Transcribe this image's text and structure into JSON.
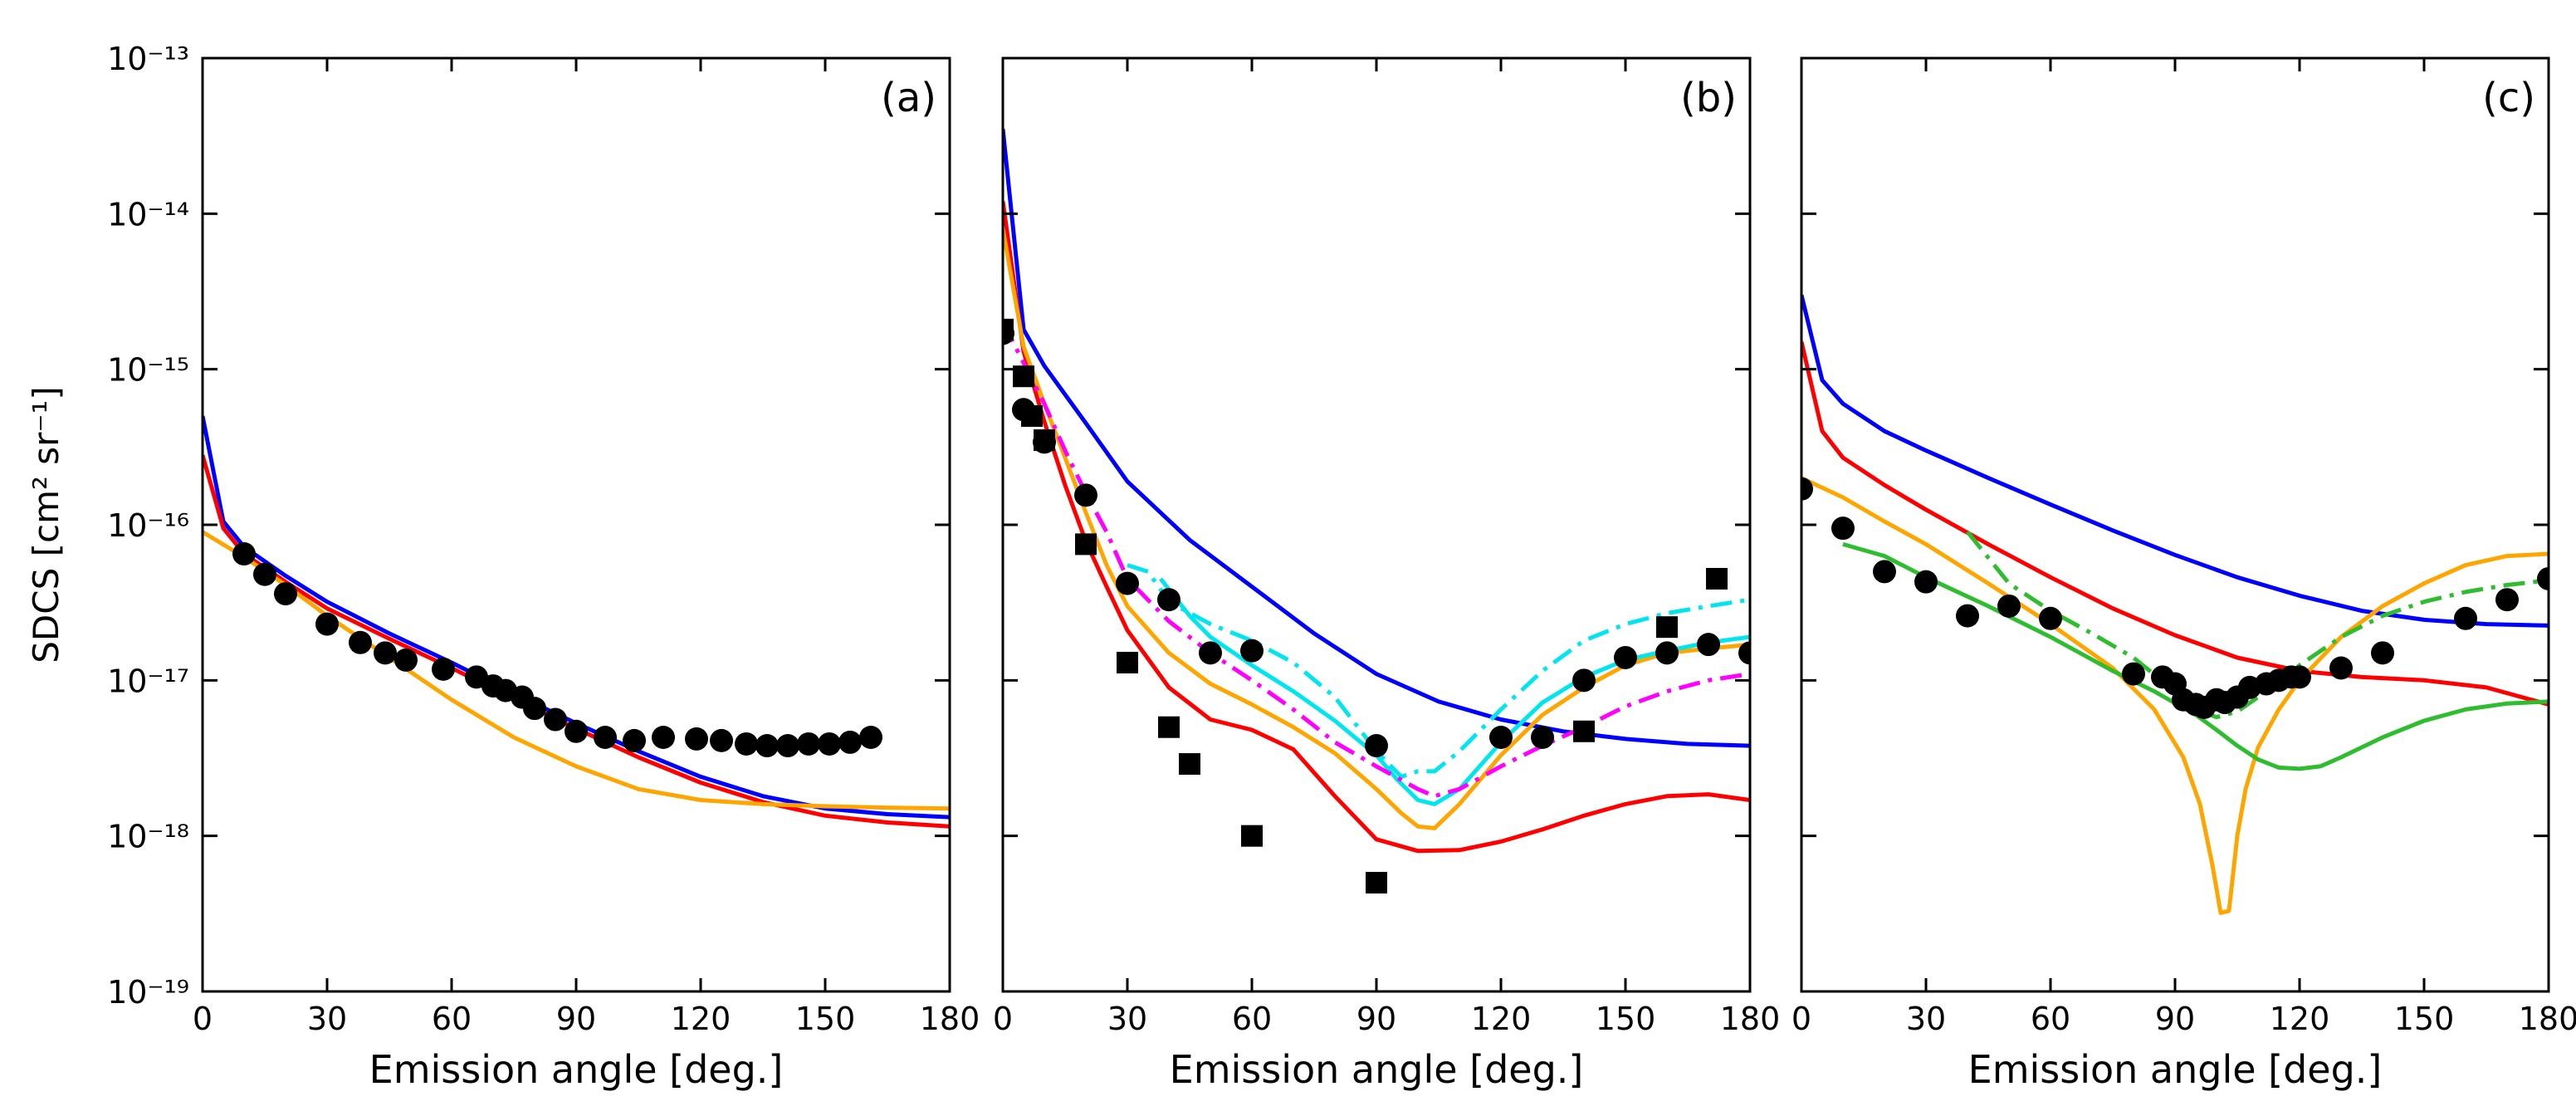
{
  "figure": {
    "ylabel": "SDCS [cm² sr⁻¹]"
  },
  "chart_data": [
    {
      "type": "line",
      "panel_label": "(a)",
      "title": "",
      "xlabel": "Emission angle [deg.]",
      "ylabel": "SDCS [cm² sr⁻¹]",
      "xlim": [
        0,
        180
      ],
      "ylim": [
        1e-19,
        1e-13
      ],
      "yscale": "log",
      "xticks": [
        0,
        30,
        60,
        90,
        120,
        150,
        180
      ],
      "yticks": [
        1e-19,
        1e-18,
        1e-17,
        1e-16,
        1e-15,
        1e-14,
        1e-13
      ],
      "ytick_labels": [
        "10⁻¹⁹",
        "10⁻¹⁸",
        "10⁻¹⁷",
        "10⁻¹⁶",
        "10⁻¹⁵",
        "10⁻¹⁴",
        "10⁻¹³"
      ],
      "show_yticklabels": true,
      "series": [
        {
          "name": "blue",
          "kind": "line",
          "color": "#0000ff",
          "dash": "solid",
          "x": [
            0,
            5,
            10,
            20,
            30,
            45,
            60,
            75,
            90,
            105,
            120,
            135,
            150,
            165,
            180
          ],
          "y": [
            5e-16,
            1.05e-16,
            7.2e-17,
            4.7e-17,
            3.2e-17,
            2e-17,
            1.3e-17,
            8.2e-18,
            5.3e-18,
            3.5e-18,
            2.4e-18,
            1.8e-18,
            1.5e-18,
            1.38e-18,
            1.32e-18
          ]
        },
        {
          "name": "red",
          "kind": "line",
          "color": "#ff0000",
          "dash": "solid",
          "x": [
            0,
            5,
            10,
            20,
            30,
            45,
            60,
            75,
            90,
            105,
            120,
            135,
            150,
            165,
            180
          ],
          "y": [
            2.8e-16,
            9.5e-17,
            6.5e-17,
            4.3e-17,
            2.9e-17,
            1.85e-17,
            1.2e-17,
            7.6e-18,
            4.9e-18,
            3.2e-18,
            2.2e-18,
            1.65e-18,
            1.35e-18,
            1.22e-18,
            1.15e-18
          ]
        },
        {
          "name": "orange",
          "kind": "line",
          "color": "#ffa500",
          "dash": "solid",
          "x": [
            0,
            10,
            20,
            30,
            45,
            60,
            75,
            90,
            105,
            120,
            135,
            150,
            165,
            180
          ],
          "y": [
            9e-17,
            6.2e-17,
            4.1e-17,
            2.6e-17,
            1.4e-17,
            7.5e-18,
            4.3e-18,
            2.8e-18,
            2e-18,
            1.7e-18,
            1.6e-18,
            1.55e-18,
            1.52e-18,
            1.5e-18
          ]
        },
        {
          "name": "measured",
          "kind": "scatter",
          "marker": "circle",
          "color": "#000000",
          "x": [
            10,
            15,
            20,
            30,
            38,
            44,
            49,
            58,
            66,
            70,
            73,
            77,
            80,
            85,
            90,
            97,
            104,
            111,
            119,
            125,
            131,
            136,
            141,
            146,
            151,
            156,
            161
          ],
          "y": [
            6.5e-17,
            4.8e-17,
            3.6e-17,
            2.3e-17,
            1.75e-17,
            1.5e-17,
            1.35e-17,
            1.18e-17,
            1.05e-17,
            9.2e-18,
            8.6e-18,
            7.8e-18,
            6.6e-18,
            5.6e-18,
            4.7e-18,
            4.3e-18,
            4.1e-18,
            4.3e-18,
            4.2e-18,
            4.1e-18,
            3.9e-18,
            3.8e-18,
            3.8e-18,
            3.9e-18,
            3.9e-18,
            4e-18,
            4.3e-18
          ]
        }
      ]
    },
    {
      "type": "line",
      "panel_label": "(b)",
      "title": "",
      "xlabel": "Emission angle [deg.]",
      "ylabel": "",
      "xlim": [
        0,
        180
      ],
      "ylim": [
        1e-19,
        1e-13
      ],
      "yscale": "log",
      "xticks": [
        0,
        30,
        60,
        90,
        120,
        150,
        180
      ],
      "yticks": [
        1e-19,
        1e-18,
        1e-17,
        1e-16,
        1e-15,
        1e-14,
        1e-13
      ],
      "ytick_labels": [],
      "show_yticklabels": false,
      "series": [
        {
          "name": "blue",
          "kind": "line",
          "color": "#0000ff",
          "dash": "solid",
          "x": [
            0,
            5,
            10,
            20,
            30,
            45,
            60,
            75,
            90,
            105,
            120,
            135,
            150,
            165,
            180
          ],
          "y": [
            3.5e-14,
            1.8e-15,
            1.05e-15,
            4.5e-16,
            1.9e-16,
            8e-17,
            4e-17,
            2e-17,
            1.1e-17,
            7.3e-18,
            5.6e-18,
            4.7e-18,
            4.2e-18,
            3.9e-18,
            3.8e-18
          ]
        },
        {
          "name": "red",
          "kind": "line",
          "color": "#ff0000",
          "dash": "solid",
          "x": [
            0,
            5,
            10,
            15,
            20,
            25,
            30,
            40,
            50,
            60,
            70,
            80,
            90,
            100,
            110,
            120,
            130,
            140,
            150,
            160,
            170,
            180
          ],
          "y": [
            1.2e-14,
            1.3e-15,
            4.6e-16,
            1.8e-16,
            7.8e-17,
            4e-17,
            2.1e-17,
            9e-18,
            5.6e-18,
            4.8e-18,
            3.6e-18,
            1.8e-18,
            9.5e-19,
            8e-19,
            8.1e-19,
            9.2e-19,
            1.1e-18,
            1.35e-18,
            1.6e-18,
            1.8e-18,
            1.85e-18,
            1.7e-18
          ]
        },
        {
          "name": "orange",
          "kind": "line",
          "color": "#ffa500",
          "dash": "solid",
          "x": [
            0,
            5,
            10,
            15,
            20,
            25,
            30,
            40,
            50,
            60,
            70,
            80,
            90,
            96,
            100,
            104,
            110,
            120,
            130,
            140,
            150,
            160,
            170,
            180
          ],
          "y": [
            8e-15,
            1.4e-15,
            6e-16,
            2.7e-16,
            1.2e-16,
            5.5e-17,
            3e-17,
            1.5e-17,
            9.5e-18,
            7e-18,
            5e-18,
            3.4e-18,
            2e-18,
            1.4e-18,
            1.15e-18,
            1.12e-18,
            1.6e-18,
            3.3e-18,
            6e-18,
            9e-18,
            1.25e-17,
            1.5e-17,
            1.6e-17,
            1.7e-17
          ]
        },
        {
          "name": "cyan",
          "kind": "line",
          "color": "#00e5ee",
          "dash": "solid",
          "x": [
            38,
            45,
            50,
            60,
            70,
            80,
            90,
            95,
            100,
            104,
            110,
            120,
            130,
            140,
            150,
            160,
            170,
            180
          ],
          "y": [
            4.5e-17,
            2.6e-17,
            1.9e-17,
            1.25e-17,
            8.5e-18,
            5.5e-18,
            3.3e-18,
            2.3e-18,
            1.7e-18,
            1.6e-18,
            2e-18,
            4e-18,
            7.2e-18,
            1.05e-17,
            1.35e-17,
            1.55e-17,
            1.75e-17,
            1.9e-17
          ]
        },
        {
          "name": "cyan dash-dot",
          "kind": "line",
          "color": "#00e5ee",
          "dash": "dashdot",
          "x": [
            30,
            35,
            40,
            50,
            60,
            70,
            80,
            90,
            96,
            100,
            104,
            110,
            120,
            130,
            140,
            150,
            160,
            170,
            180
          ],
          "y": [
            5.5e-17,
            5e-17,
            3.2e-17,
            2.3e-17,
            1.8e-17,
            1.3e-17,
            7.8e-18,
            3.5e-18,
            2.4e-18,
            2.6e-18,
            2.6e-18,
            3.5e-18,
            6.5e-18,
            1.15e-17,
            1.8e-17,
            2.3e-17,
            2.7e-17,
            3e-17,
            3.3e-17
          ]
        },
        {
          "name": "magenta dash-dot",
          "kind": "line",
          "color": "#ff00ff",
          "dash": "dashdot",
          "x": [
            0,
            5,
            10,
            15,
            20,
            25,
            30,
            40,
            50,
            60,
            70,
            80,
            90,
            100,
            104,
            110,
            120,
            130,
            140,
            150,
            160,
            170,
            180
          ],
          "y": [
            2e-15,
            1.1e-15,
            6e-16,
            3e-16,
            1.6e-16,
            9e-17,
            4.5e-17,
            2.4e-17,
            1.5e-17,
            1e-17,
            6.5e-18,
            4e-18,
            2.8e-18,
            2e-18,
            1.8e-18,
            2e-18,
            2.8e-18,
            3.8e-18,
            5e-18,
            6.8e-18,
            8.5e-18,
            1e-17,
            1.1e-17
          ]
        },
        {
          "name": "measured (circles)",
          "kind": "scatter",
          "marker": "circle",
          "color": "#000000",
          "x": [
            0,
            5,
            10,
            20,
            30,
            40,
            50,
            60,
            90,
            120,
            130,
            140,
            150,
            160,
            170,
            180
          ],
          "y": [
            1.7e-15,
            5.5e-16,
            3.4e-16,
            1.55e-16,
            4.2e-17,
            3.3e-17,
            1.5e-17,
            1.55e-17,
            3.8e-18,
            4.3e-18,
            4.3e-18,
            1e-17,
            1.4e-17,
            1.5e-17,
            1.7e-17,
            1.5e-17
          ]
        },
        {
          "name": "measured (squares)",
          "kind": "scatter",
          "marker": "square",
          "color": "#000000",
          "x": [
            0,
            5,
            7,
            10,
            20,
            30,
            40,
            45,
            60,
            90,
            140,
            160,
            172
          ],
          "y": [
            1.8e-15,
            9e-16,
            5e-16,
            3.5e-16,
            7.5e-17,
            1.3e-17,
            5e-18,
            2.9e-18,
            1e-18,
            5e-19,
            4.7e-18,
            2.2e-17,
            4.5e-17
          ]
        }
      ]
    },
    {
      "type": "line",
      "panel_label": "(c)",
      "title": "",
      "xlabel": "Emission angle [deg.]",
      "ylabel": "",
      "xlim": [
        0,
        180
      ],
      "ylim": [
        1e-19,
        1e-13
      ],
      "yscale": "log",
      "xticks": [
        0,
        30,
        60,
        90,
        120,
        150,
        180
      ],
      "yticks": [
        1e-19,
        1e-18,
        1e-17,
        1e-16,
        1e-15,
        1e-14,
        1e-13
      ],
      "ytick_labels": [],
      "show_yticklabels": false,
      "series": [
        {
          "name": "blue",
          "kind": "line",
          "color": "#0000ff",
          "dash": "solid",
          "x": [
            0,
            5,
            10,
            20,
            30,
            45,
            60,
            75,
            90,
            105,
            120,
            135,
            150,
            165,
            180
          ],
          "y": [
            3e-15,
            8.5e-16,
            6e-16,
            4e-16,
            3e-16,
            2e-16,
            1.35e-16,
            9.2e-17,
            6.4e-17,
            4.6e-17,
            3.5e-17,
            2.8e-17,
            2.45e-17,
            2.3e-17,
            2.25e-17
          ]
        },
        {
          "name": "red",
          "kind": "line",
          "color": "#ff0000",
          "dash": "solid",
          "x": [
            0,
            5,
            10,
            20,
            30,
            45,
            60,
            75,
            90,
            105,
            120,
            135,
            150,
            165,
            180
          ],
          "y": [
            1.5e-15,
            4e-16,
            2.7e-16,
            1.8e-16,
            1.25e-16,
            7.5e-17,
            4.6e-17,
            2.9e-17,
            1.95e-17,
            1.4e-17,
            1.15e-17,
            1.05e-17,
            1e-17,
            9e-18,
            7e-18
          ]
        },
        {
          "name": "orange",
          "kind": "line",
          "color": "#ffa500",
          "dash": "solid",
          "x": [
            0,
            10,
            20,
            30,
            45,
            60,
            75,
            85,
            92,
            96,
            99,
            101,
            103,
            105,
            107,
            110,
            115,
            120,
            130,
            140,
            150,
            160,
            170,
            180
          ],
          "y": [
            2e-16,
            1.5e-16,
            1.05e-16,
            7.5e-17,
            4.2e-17,
            2.3e-17,
            1.2e-17,
            6.5e-18,
            3.2e-18,
            1.6e-18,
            6.5e-19,
            3.2e-19,
            3.3e-19,
            1e-18,
            2e-18,
            3.7e-18,
            6.5e-18,
            1e-17,
            1.9e-17,
            3e-17,
            4.2e-17,
            5.5e-17,
            6.3e-17,
            6.5e-17
          ]
        },
        {
          "name": "green",
          "kind": "line",
          "color": "#2ebd2e",
          "dash": "solid",
          "x": [
            10,
            20,
            30,
            45,
            60,
            75,
            85,
            95,
            100,
            105,
            110,
            115,
            120,
            125,
            130,
            140,
            150,
            160,
            170,
            180
          ],
          "y": [
            7.5e-17,
            6.3e-17,
            4.6e-17,
            3e-17,
            1.9e-17,
            1.15e-17,
            8.5e-18,
            6e-18,
            4.8e-18,
            3.8e-18,
            3.1e-18,
            2.75e-18,
            2.7e-18,
            2.8e-18,
            3.2e-18,
            4.3e-18,
            5.5e-18,
            6.5e-18,
            7.1e-18,
            7.3e-18
          ]
        },
        {
          "name": "green dash-dot",
          "kind": "line",
          "color": "#2ebd2e",
          "dash": "dashdot",
          "x": [
            40,
            50,
            60,
            70,
            80,
            90,
            95,
            100,
            105,
            110,
            120,
            130,
            140,
            150,
            160,
            170,
            180
          ],
          "y": [
            9e-17,
            4.2e-17,
            2.8e-17,
            2e-17,
            1.4e-17,
            8.5e-18,
            6.5e-18,
            5.8e-18,
            6.3e-18,
            7.8e-18,
            1.25e-17,
            1.9e-17,
            2.6e-17,
            3.2e-17,
            3.7e-17,
            4.1e-17,
            4.4e-17
          ]
        },
        {
          "name": "measured",
          "kind": "scatter",
          "marker": "circle",
          "color": "#000000",
          "x": [
            0,
            10,
            20,
            30,
            40,
            50,
            60,
            80,
            87,
            90,
            92,
            95,
            97,
            100,
            102,
            105,
            108,
            112,
            115,
            118,
            120,
            130,
            140,
            160,
            170,
            180
          ],
          "y": [
            1.7e-16,
            9.5e-17,
            5e-17,
            4.3e-17,
            2.6e-17,
            3e-17,
            2.5e-17,
            1.1e-17,
            1.05e-17,
            9.5e-18,
            7.5e-18,
            7e-18,
            6.7e-18,
            7.5e-18,
            7.2e-18,
            7.8e-18,
            9e-18,
            9.5e-18,
            1e-17,
            1.05e-17,
            1.05e-17,
            1.2e-17,
            1.5e-17,
            2.5e-17,
            3.3e-17,
            4.5e-17
          ]
        }
      ]
    }
  ]
}
